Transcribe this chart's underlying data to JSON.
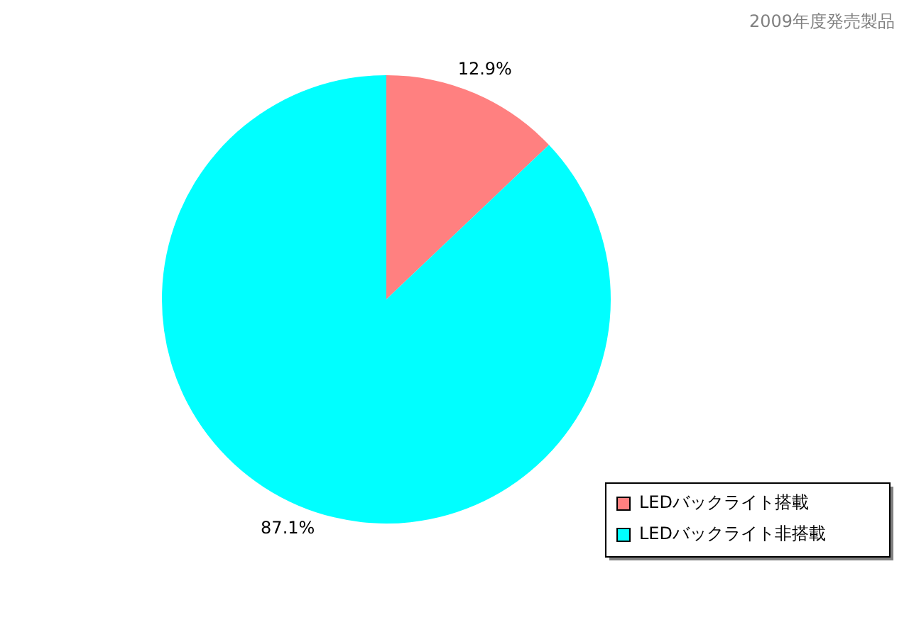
{
  "chart_data": {
    "type": "pie",
    "title": "2009年度発売製品",
    "categories": [
      "LEDバックライト搭載",
      "LEDバックライト非搭載"
    ],
    "values": [
      12.9,
      87.1
    ],
    "colors": [
      "#ff8080",
      "#00ffff"
    ],
    "value_labels": [
      "12.9%",
      "87.1%"
    ],
    "legend": "bottom right"
  }
}
